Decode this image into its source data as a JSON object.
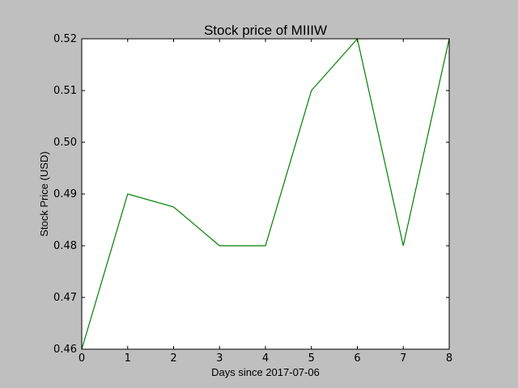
{
  "chart_data": {
    "type": "line",
    "title": "Stock price of MIIIW",
    "xlabel": "Days since 2017-07-06",
    "ylabel": "Stock Price (USD)",
    "xlim": [
      0,
      8
    ],
    "ylim": [
      0.46,
      0.52
    ],
    "xticks": [
      0,
      1,
      2,
      3,
      4,
      5,
      6,
      7,
      8
    ],
    "xtick_labels": [
      "0",
      "1",
      "2",
      "3",
      "4",
      "5",
      "6",
      "7",
      "8"
    ],
    "yticks": [
      0.46,
      0.47,
      0.48,
      0.49,
      0.5,
      0.51,
      0.52
    ],
    "ytick_labels": [
      "0.46",
      "0.47",
      "0.48",
      "0.49",
      "0.50",
      "0.51",
      "0.52"
    ],
    "grid": false,
    "series": [
      {
        "color": "#008000",
        "x": [
          0,
          1,
          2,
          3,
          4,
          5,
          6,
          7,
          8
        ],
        "y": [
          0.46,
          0.49,
          0.4875,
          0.48,
          0.48,
          0.51,
          0.52,
          0.48,
          0.52
        ]
      }
    ]
  }
}
